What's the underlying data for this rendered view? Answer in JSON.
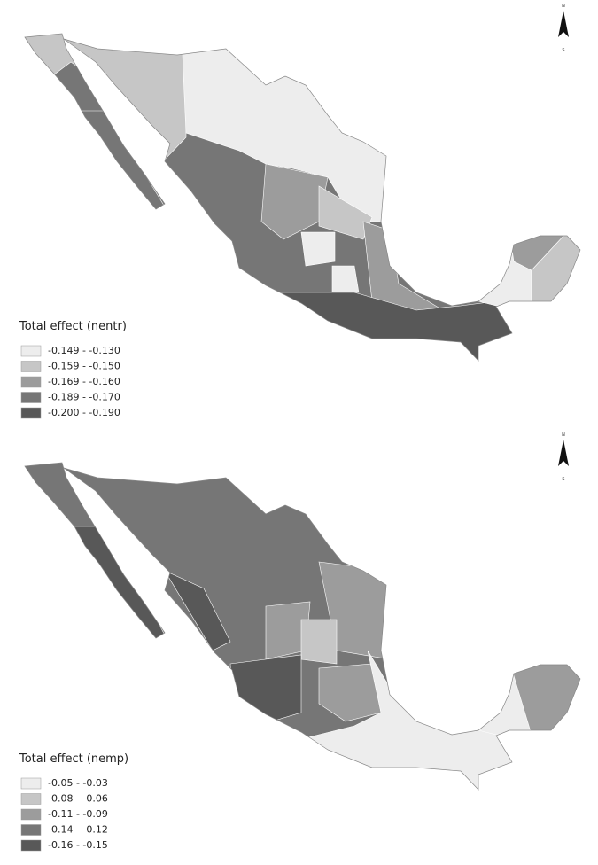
{
  "maps": [
    {
      "compass": {
        "north": "N",
        "south": "S"
      },
      "legend": {
        "title": "Total effect (nentr)",
        "items": [
          {
            "label": "-0.149 - -0.130",
            "color": "#ededed"
          },
          {
            "label": "-0.159 - -0.150",
            "color": "#c6c6c6"
          },
          {
            "label": "-0.169 - -0.160",
            "color": "#9c9c9c"
          },
          {
            "label": "-0.189 - -0.170",
            "color": "#767676"
          },
          {
            "label": "-0.200 - -0.190",
            "color": "#585858"
          }
        ]
      }
    },
    {
      "compass": {
        "north": "N",
        "south": "S"
      },
      "legend": {
        "title": "Total effect (nemp)",
        "items": [
          {
            "label": "-0.05 - -0.03",
            "color": "#ededed"
          },
          {
            "label": "-0.08 - -0.06",
            "color": "#c6c6c6"
          },
          {
            "label": "-0.11 - -0.09",
            "color": "#9c9c9c"
          },
          {
            "label": "-0.14 - -0.12",
            "color": "#767676"
          },
          {
            "label": "-0.16 - -0.15",
            "color": "#585858"
          }
        ]
      }
    }
  ]
}
